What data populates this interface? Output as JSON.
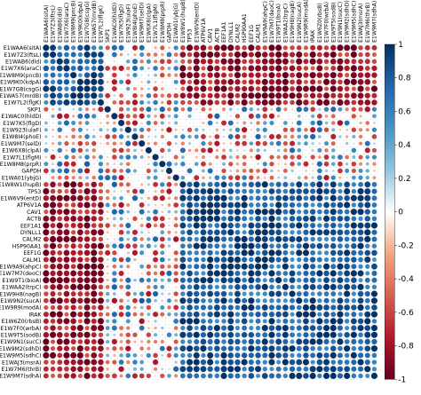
{
  "chart_data": {
    "type": "heatmap",
    "title": "",
    "xlabel": "",
    "ylabel": "",
    "labels": [
      "E1WAA6(sitA)",
      "E1W7Z3(ftsL)",
      "E1WAB6(dld)",
      "E1W7X6(araC)",
      "E1W8M9(pncB)",
      "E1W9K0(kdpA)",
      "E1W7G8(csgG)",
      "E1WA57(mrdB)",
      "E1W7L2(flgK)",
      "SKP1",
      "E1WAC0(hldD)",
      "E1W7K5(flgD)",
      "E1W923(ulaF)",
      "E1W8I4(phoE)",
      "E1W9M7(selD)",
      "E1W6X8(clpA)",
      "E1W7L1(flgM)",
      "E1W8M8(prpR)",
      "GAPDH",
      "E1WA01(ybjG)",
      "E1W8W1(hupB)",
      "TP53",
      "E1W6V9(entD)",
      "ATP6V1A",
      "CAV1",
      "ACTB",
      "EEF1A1",
      "DYNLL1",
      "CALM2",
      "HSP90AA1",
      "EEF1G",
      "CALM1",
      "E1W9A9(ahpC)",
      "E1W7M7(deoC)",
      "E1W9T1(bioA)",
      "E1WAA2(trpC)",
      "E1W9H8(nagB)",
      "E1W9N2(sucA)",
      "E1W9R9(modA)",
      "IRAK",
      "E1W6Z0(rbsB)",
      "E1W7F0(wrbA)",
      "E1W9T5(sodB)",
      "E1W9N1(sucC)",
      "E1W9M2(sdhD)",
      "E1W9M5(sdhC)",
      "E1WAJ3(msrA)",
      "E1W7M6(thrB)",
      "E1W9M7(sdhA)"
    ],
    "colorscale": {
      "min": -1,
      "max": 1,
      "ticks": [
        1,
        0.8,
        0.6,
        0.4,
        0.2,
        0,
        -0.2,
        -0.4,
        -0.6,
        -0.8,
        -1
      ],
      "negative_color": "#67001f",
      "zero_color": "#ffffff",
      "positive_color": "#053061"
    },
    "group_boundaries": [
      9,
      20
    ],
    "group_correlation": [
      [
        0.75,
        0.3,
        -0.8
      ],
      [
        0.3,
        0.45,
        0.35
      ],
      [
        -0.8,
        0.35,
        0.8
      ]
    ],
    "glyph": "circle",
    "lower_triangle_only": false
  },
  "colorbar": {
    "tick_labels": [
      "1",
      "0.8",
      "0.6",
      "0.4",
      "0.2",
      "0",
      "-0.2",
      "-0.4",
      "-0.6",
      "-0.8",
      "-1"
    ]
  }
}
